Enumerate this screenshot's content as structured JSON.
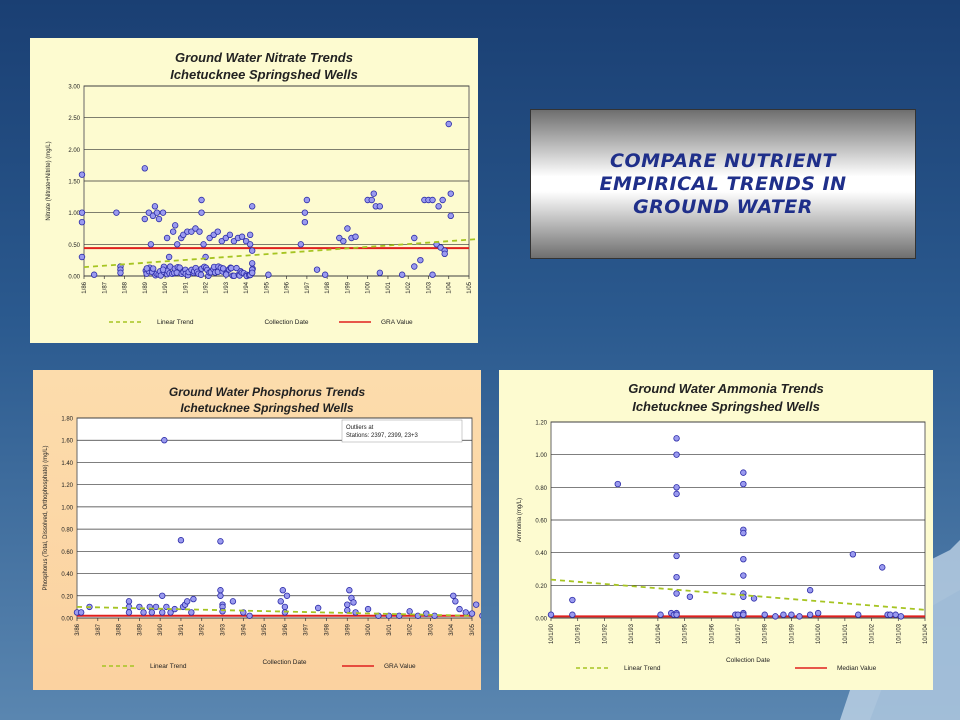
{
  "slide_title": "COMPARE NUTRIENT\nEMPIRICAL TRENDS IN\nGROUND WATER",
  "colors": {
    "background": "#2b5a8f",
    "title_text": "#1f2f8a",
    "nitrate_bg": "#fdfbd0",
    "phosphorus_bg": "#fbd9a8",
    "ammonia_bg": "#fdfbd0",
    "point_fill": "#9a9aef",
    "point_stroke": "#2c2ca8",
    "trend": "#a6c422",
    "reference": "#e0201e"
  },
  "chart_data": [
    {
      "type": "scatter",
      "title": "Ground Water Nitrate Trends",
      "subtitle": "Ichetucknee Springshed Wells",
      "xlabel": "Collection Date",
      "ylabel": "Nitrate (Nitrate+Nitrite) (mg/L)",
      "ylim": [
        0,
        3.0
      ],
      "yticks": [
        "0.00",
        "0.50",
        "1.00",
        "1.50",
        "2.00",
        "2.50",
        "3.00"
      ],
      "xticks": [
        "1/86",
        "1/87",
        "1/88",
        "1/89",
        "1/90",
        "1/91",
        "1/92",
        "1/93",
        "1/94",
        "1/95",
        "1/96",
        "1/97",
        "1/98",
        "1/99",
        "1/00",
        "1/01",
        "1/02",
        "1/03",
        "1/04",
        "1/05"
      ],
      "grid": true,
      "legend": [
        "Linear Trend",
        "GRA Value"
      ],
      "reference_value": 0.44,
      "trend": [
        [
          0,
          0.14
        ],
        [
          19.3,
          0.58
        ]
      ],
      "points": [
        [
          -0.1,
          1.6
        ],
        [
          -0.1,
          1.0
        ],
        [
          -0.1,
          0.85
        ],
        [
          -0.1,
          0.3
        ],
        [
          0.5,
          0.02
        ],
        [
          1.6,
          1.0
        ],
        [
          1.8,
          0.15
        ],
        [
          1.8,
          0.1
        ],
        [
          1.8,
          0.05
        ],
        [
          3.0,
          1.7
        ],
        [
          3.0,
          0.9
        ],
        [
          3.1,
          0.12
        ],
        [
          3.2,
          1.0
        ],
        [
          3.3,
          0.5
        ],
        [
          3.4,
          0.95
        ],
        [
          3.5,
          1.1
        ],
        [
          3.6,
          1.0
        ],
        [
          3.7,
          0.9
        ],
        [
          3.9,
          1.0
        ],
        [
          3.9,
          0.1
        ],
        [
          4.1,
          0.6
        ],
        [
          4.2,
          0.3
        ],
        [
          4.4,
          0.7
        ],
        [
          4.5,
          0.8
        ],
        [
          4.6,
          0.5
        ],
        [
          4.8,
          0.6
        ],
        [
          4.9,
          0.65
        ],
        [
          5.1,
          0.7
        ],
        [
          5.3,
          0.7
        ],
        [
          5.5,
          0.75
        ],
        [
          5.7,
          0.7
        ],
        [
          5.8,
          1.2
        ],
        [
          5.8,
          1.0
        ],
        [
          5.9,
          0.5
        ],
        [
          6.0,
          0.3
        ],
        [
          6.2,
          0.6
        ],
        [
          6.4,
          0.65
        ],
        [
          6.6,
          0.7
        ],
        [
          6.8,
          0.55
        ],
        [
          7.0,
          0.6
        ],
        [
          7.2,
          0.65
        ],
        [
          7.4,
          0.55
        ],
        [
          7.6,
          0.6
        ],
        [
          7.8,
          0.62
        ],
        [
          8.0,
          0.55
        ],
        [
          8.2,
          0.65
        ],
        [
          8.2,
          0.5
        ],
        [
          8.3,
          1.1
        ],
        [
          8.3,
          0.2
        ],
        [
          8.3,
          0.1
        ],
        [
          8.3,
          0.05
        ],
        [
          8.3,
          0.4
        ],
        [
          9.1,
          0.02
        ],
        [
          10.7,
          0.5
        ],
        [
          10.9,
          1.0
        ],
        [
          10.9,
          0.85
        ],
        [
          11.0,
          1.2
        ],
        [
          11.5,
          0.1
        ],
        [
          11.9,
          0.02
        ],
        [
          12.6,
          0.6
        ],
        [
          12.8,
          0.55
        ],
        [
          13.0,
          0.75
        ],
        [
          13.2,
          0.6
        ],
        [
          13.4,
          0.62
        ],
        [
          14.0,
          1.2
        ],
        [
          14.2,
          1.2
        ],
        [
          14.3,
          1.3
        ],
        [
          14.4,
          1.1
        ],
        [
          14.6,
          1.1
        ],
        [
          14.6,
          0.05
        ],
        [
          15.7,
          0.02
        ],
        [
          16.3,
          0.6
        ],
        [
          16.3,
          0.15
        ],
        [
          16.6,
          0.25
        ],
        [
          16.8,
          1.2
        ],
        [
          17.0,
          1.2
        ],
        [
          17.2,
          1.2
        ],
        [
          17.2,
          0.02
        ],
        [
          17.4,
          0.5
        ],
        [
          17.5,
          1.1
        ],
        [
          17.6,
          0.45
        ],
        [
          17.7,
          1.2
        ],
        [
          17.8,
          0.4
        ],
        [
          17.8,
          0.35
        ],
        [
          18.0,
          2.4
        ],
        [
          18.1,
          1.3
        ],
        [
          18.1,
          0.95
        ]
      ],
      "points_band": {
        "x_from": 3.0,
        "x_to": 8.4,
        "y_max": 0.15,
        "count": 70
      }
    },
    {
      "type": "scatter",
      "title": "Ground Water Phosphorus Trends",
      "subtitle": "Ichetucknee Springshed Wells",
      "xlabel": "Collection Date",
      "ylabel": "Phosphorus (Total, Dissolved, Orthophosphate) (mg/L)",
      "ylim": [
        0,
        1.8
      ],
      "yticks": [
        "0.00",
        "0.20",
        "0.40",
        "0.60",
        "0.80",
        "1.00",
        "1.20",
        "1.40",
        "1.60",
        "1.80"
      ],
      "xticks": [
        "3/86",
        "3/87",
        "3/88",
        "3/89",
        "3/90",
        "3/91",
        "3/92",
        "3/93",
        "3/94",
        "3/95",
        "3/96",
        "3/97",
        "3/98",
        "3/99",
        "3/00",
        "3/01",
        "3/02",
        "3/03",
        "3/04",
        "3/05"
      ],
      "grid": true,
      "annotation": "Outliers at\nStations: 2397, 2399, 23+3",
      "legend": [
        "Linear Trend",
        "GRA Value"
      ],
      "reference_value": 0.02,
      "trend": [
        [
          0,
          0.1
        ],
        [
          19,
          0.02
        ]
      ],
      "points": [
        [
          0,
          0.05
        ],
        [
          0.2,
          0.05
        ],
        [
          0.6,
          0.1
        ],
        [
          2.5,
          0.15
        ],
        [
          2.5,
          0.1
        ],
        [
          2.5,
          0.05
        ],
        [
          3.0,
          0.1
        ],
        [
          3.2,
          0.05
        ],
        [
          3.5,
          0.1
        ],
        [
          3.6,
          0.05
        ],
        [
          3.8,
          0.1
        ],
        [
          4.1,
          0.05
        ],
        [
          4.2,
          1.6
        ],
        [
          4.1,
          0.2
        ],
        [
          4.3,
          0.1
        ],
        [
          4.5,
          0.05
        ],
        [
          4.7,
          0.08
        ],
        [
          5.0,
          0.7
        ],
        [
          5.1,
          0.1
        ],
        [
          5.2,
          0.12
        ],
        [
          5.3,
          0.15
        ],
        [
          5.5,
          0.05
        ],
        [
          5.6,
          0.17
        ],
        [
          6.9,
          0.69
        ],
        [
          6.9,
          0.25
        ],
        [
          6.9,
          0.2
        ],
        [
          7.0,
          0.12
        ],
        [
          7.0,
          0.1
        ],
        [
          7.0,
          0.06
        ],
        [
          7.5,
          0.15
        ],
        [
          8.0,
          0.05
        ],
        [
          8.3,
          0.02
        ],
        [
          9.8,
          0.15
        ],
        [
          9.9,
          0.25
        ],
        [
          10.0,
          0.1
        ],
        [
          10.0,
          0.05
        ],
        [
          10.1,
          0.2
        ],
        [
          11.6,
          0.09
        ],
        [
          13.0,
          0.12
        ],
        [
          13.0,
          0.07
        ],
        [
          13.1,
          0.25
        ],
        [
          13.2,
          0.18
        ],
        [
          13.3,
          0.14
        ],
        [
          13.4,
          0.05
        ],
        [
          14.0,
          0.08
        ],
        [
          14.5,
          0.02
        ],
        [
          15.0,
          0.02
        ],
        [
          15.5,
          0.02
        ],
        [
          16.0,
          0.06
        ],
        [
          16.4,
          0.02
        ],
        [
          16.8,
          0.04
        ],
        [
          17.2,
          0.02
        ],
        [
          18.1,
          0.2
        ],
        [
          18.2,
          0.15
        ],
        [
          18.4,
          0.08
        ],
        [
          18.7,
          0.05
        ],
        [
          19.0,
          0.04
        ],
        [
          19.2,
          0.12
        ],
        [
          19.5,
          0.02
        ],
        [
          19.7,
          0.02
        ],
        [
          19.9,
          0.02
        ]
      ]
    },
    {
      "type": "scatter",
      "title": "Ground Water Ammonia Trends",
      "subtitle": "Ichetucknee Springshed Wells",
      "xlabel": "Collection Date",
      "ylabel": "Ammonia (mg/L)",
      "ylim": [
        0,
        1.2
      ],
      "yticks": [
        "0.00",
        "0.20",
        "0.40",
        "0.60",
        "0.80",
        "1.00",
        "1.20"
      ],
      "xticks": [
        "10/1/90",
        "10/1/91",
        "10/1/92",
        "10/1/93",
        "10/1/94",
        "10/1/95",
        "10/1/96",
        "10/1/97",
        "10/1/98",
        "10/1/99",
        "10/1/00",
        "10/1/01",
        "10/1/02",
        "10/1/03",
        "10/1/04"
      ],
      "grid": true,
      "legend": [
        "Linear Trend",
        "Median Value"
      ],
      "reference_value": 0.01,
      "trend": [
        [
          0,
          0.235
        ],
        [
          14,
          0.05
        ]
      ],
      "points": [
        [
          0,
          0.02
        ],
        [
          0.8,
          0.11
        ],
        [
          0.8,
          0.02
        ],
        [
          2.5,
          0.82
        ],
        [
          4.1,
          0.02
        ],
        [
          4.5,
          0.03
        ],
        [
          4.6,
          0.02
        ],
        [
          4.7,
          1.1
        ],
        [
          4.7,
          1.0
        ],
        [
          4.7,
          0.8
        ],
        [
          4.7,
          0.76
        ],
        [
          4.7,
          0.38
        ],
        [
          4.7,
          0.25
        ],
        [
          4.7,
          0.15
        ],
        [
          4.7,
          0.03
        ],
        [
          4.7,
          0.02
        ],
        [
          5.2,
          0.13
        ],
        [
          6.9,
          0.02
        ],
        [
          7.0,
          0.02
        ],
        [
          7.2,
          0.89
        ],
        [
          7.2,
          0.82
        ],
        [
          7.2,
          0.54
        ],
        [
          7.2,
          0.52
        ],
        [
          7.2,
          0.36
        ],
        [
          7.2,
          0.26
        ],
        [
          7.2,
          0.15
        ],
        [
          7.2,
          0.13
        ],
        [
          7.2,
          0.03
        ],
        [
          7.2,
          0.02
        ],
        [
          7.6,
          0.12
        ],
        [
          8.0,
          0.02
        ],
        [
          8.4,
          0.01
        ],
        [
          8.7,
          0.02
        ],
        [
          9.0,
          0.02
        ],
        [
          9.3,
          0.01
        ],
        [
          9.7,
          0.17
        ],
        [
          9.7,
          0.02
        ],
        [
          10.0,
          0.03
        ],
        [
          11.3,
          0.39
        ],
        [
          11.5,
          0.02
        ],
        [
          12.4,
          0.31
        ],
        [
          12.6,
          0.02
        ],
        [
          12.7,
          0.02
        ],
        [
          12.9,
          0.02
        ],
        [
          13.1,
          0.01
        ]
      ]
    }
  ]
}
